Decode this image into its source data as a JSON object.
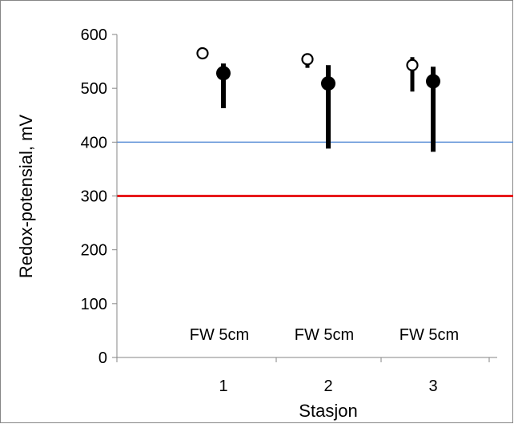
{
  "chart_data": {
    "type": "scatter",
    "title": "",
    "xlabel": "Stasjon",
    "ylabel": "Redox-potensial, mV",
    "x_ticks": [
      "1",
      "2",
      "3"
    ],
    "ylim": [
      0,
      600
    ],
    "y_ticks": [
      0,
      100,
      200,
      300,
      400,
      500,
      600
    ],
    "grid": false,
    "legend": "none",
    "category_annotations": [
      "FW 5cm",
      "FW 5cm",
      "FW 5cm"
    ],
    "series": [
      {
        "marker": "open-circle",
        "points": [
          {
            "x": 1,
            "y": 565,
            "y_low": 565,
            "y_high": 565
          },
          {
            "x": 2,
            "y": 554,
            "y_low": 538,
            "y_high": 558
          },
          {
            "x": 3,
            "y": 543,
            "y_low": 494,
            "y_high": 558
          }
        ]
      },
      {
        "marker": "filled-circle",
        "points": [
          {
            "x": 1,
            "y": 528,
            "y_low": 463,
            "y_high": 546
          },
          {
            "x": 2,
            "y": 509,
            "y_low": 388,
            "y_high": 543
          },
          {
            "x": 3,
            "y": 513,
            "y_low": 382,
            "y_high": 540
          }
        ]
      }
    ],
    "reference_lines": [
      {
        "y": 400,
        "color": "#5b8fd6"
      },
      {
        "y": 300,
        "color": "#e8191b"
      }
    ],
    "colors": {
      "marker": "#000000",
      "axis": "#868686",
      "frame": "#868686"
    }
  }
}
